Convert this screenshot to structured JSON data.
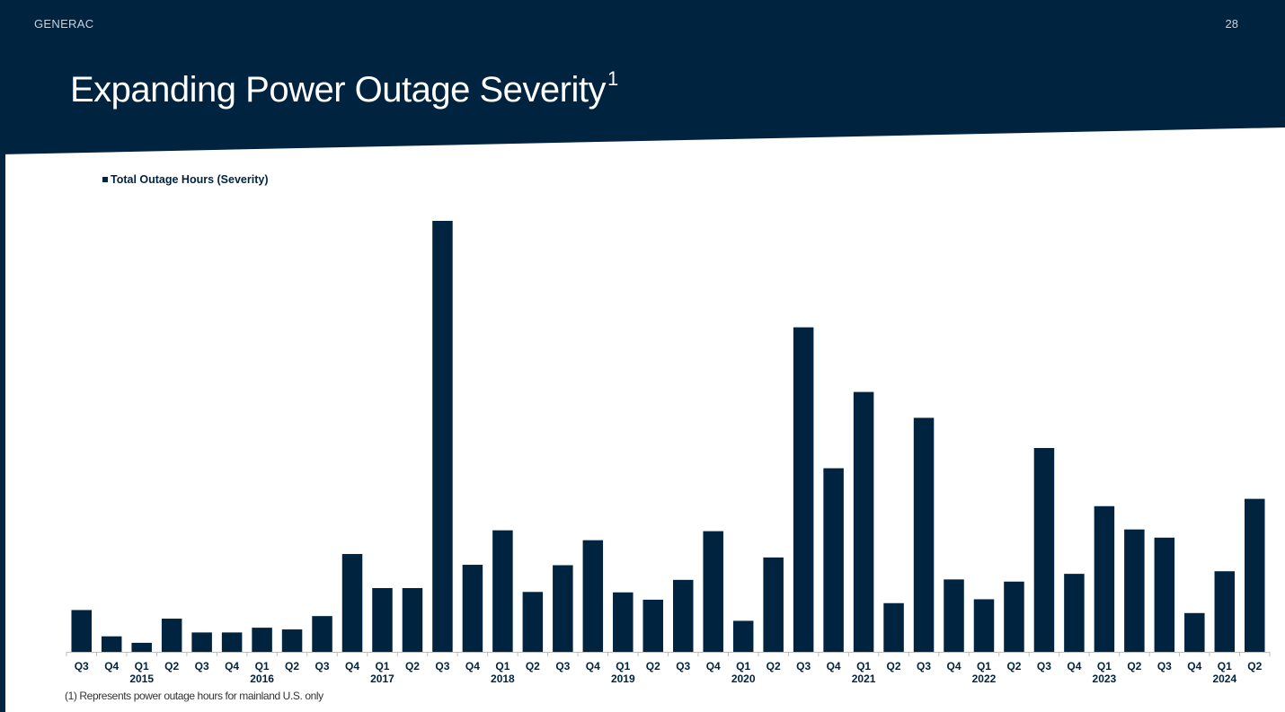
{
  "header": {
    "brand": "GENERAC",
    "page_number": "28",
    "title": "Expanding Power Outage Severity",
    "title_superscript": "1"
  },
  "colors": {
    "navy": "#00233f",
    "header_text": "#c9d3dc",
    "axis": "#bfbfbf"
  },
  "footnote": "(1) Represents power outage hours for mainland U.S. only",
  "chart_data": {
    "type": "bar",
    "title": "",
    "xlabel": "",
    "ylabel": "",
    "legend": "top-left",
    "grid": false,
    "y_axis_shown": false,
    "ylim": [
      0,
      100
    ],
    "categories": [
      "Q3",
      "Q4",
      "Q1",
      "Q2",
      "Q3",
      "Q4",
      "Q1",
      "Q2",
      "Q3",
      "Q4",
      "Q1",
      "Q2",
      "Q3",
      "Q4",
      "Q1",
      "Q2",
      "Q3",
      "Q4",
      "Q1",
      "Q2",
      "Q3",
      "Q4",
      "Q1",
      "Q2",
      "Q3",
      "Q4",
      "Q1",
      "Q2",
      "Q3",
      "Q4",
      "Q1",
      "Q2",
      "Q3",
      "Q4",
      "Q1",
      "Q2",
      "Q3",
      "Q4",
      "Q1",
      "Q2"
    ],
    "year_labels": [
      {
        "index": 2,
        "label": "2015"
      },
      {
        "index": 6,
        "label": "2016"
      },
      {
        "index": 10,
        "label": "2017"
      },
      {
        "index": 14,
        "label": "2018"
      },
      {
        "index": 18,
        "label": "2019"
      },
      {
        "index": 22,
        "label": "2020"
      },
      {
        "index": 26,
        "label": "2021"
      },
      {
        "index": 30,
        "label": "2022"
      },
      {
        "index": 34,
        "label": "2023"
      },
      {
        "index": 38,
        "label": "2024"
      }
    ],
    "series": [
      {
        "name": "Total Outage Hours (Severity)",
        "values": [
          9.7,
          3.6,
          2.1,
          7.7,
          4.5,
          4.5,
          5.6,
          5.2,
          8.3,
          22.7,
          14.8,
          14.8,
          100.0,
          20.2,
          28.2,
          13.9,
          20.1,
          25.9,
          13.8,
          12.1,
          16.7,
          28.0,
          7.2,
          21.9,
          75.3,
          42.6,
          60.3,
          11.3,
          54.3,
          16.8,
          12.2,
          16.3,
          47.3,
          18.1,
          33.8,
          28.4,
          26.5,
          9.0,
          18.7,
          35.5
        ]
      }
    ]
  }
}
